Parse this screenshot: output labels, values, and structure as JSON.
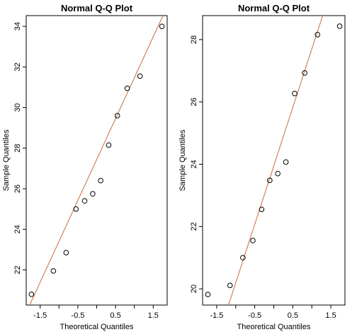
{
  "chart_data": [
    {
      "type": "scatter",
      "title": "Normal Q-Q Plot",
      "xlabel": "Theoretical Quantiles",
      "ylabel": "Sample Quantiles",
      "x": [
        -1.732,
        -1.15,
        -0.812,
        -0.549,
        -0.319,
        -0.105,
        0.105,
        0.319,
        0.549,
        0.812,
        1.15,
        1.732
      ],
      "values": [
        20.8,
        21.95,
        22.85,
        25.0,
        25.4,
        25.75,
        26.4,
        28.15,
        29.6,
        30.95,
        31.55,
        34.0
      ],
      "color": "#000000",
      "line": {
        "color": "#cd6a3a",
        "x": [
          -1.78,
          1.76
        ],
        "y": [
          20.27,
          34.53
        ]
      },
      "xlim": [
        -1.871,
        1.871
      ],
      "ylim": [
        20.27,
        34.53
      ],
      "xticks": [
        {
          "value": -1.5,
          "label": "-1.5"
        },
        {
          "value": -1.0,
          "label": ""
        },
        {
          "value": -0.5,
          "label": "-0.5"
        },
        {
          "value": 0,
          "label": ""
        },
        {
          "value": 0.5,
          "label": "0.5"
        },
        {
          "value": 1.0,
          "label": ""
        },
        {
          "value": 1.5,
          "label": "1.5"
        }
      ],
      "yticks": [
        22,
        24,
        26,
        28,
        30,
        32,
        34
      ]
    },
    {
      "type": "scatter",
      "title": "Normal Q-Q Plot",
      "xlabel": "Theoretical Quantiles",
      "ylabel": "Sample Quantiles",
      "x": [
        -1.732,
        -1.15,
        -0.812,
        -0.549,
        -0.319,
        -0.105,
        0.105,
        0.319,
        0.549,
        0.812,
        1.15,
        1.732
      ],
      "values": [
        19.82,
        20.11,
        21.0,
        21.55,
        22.55,
        23.48,
        23.7,
        24.07,
        26.27,
        26.93,
        28.16,
        28.43
      ],
      "color": "#000000",
      "line": {
        "color": "#cd6a3a",
        "x": [
          -1.19,
          1.285
        ],
        "y": [
          19.48,
          28.77
        ]
      },
      "xlim": [
        -1.871,
        1.871
      ],
      "ylim": [
        19.48,
        28.77
      ],
      "xticks": [
        {
          "value": -1.5,
          "label": "-1.5"
        },
        {
          "value": -1.0,
          "label": ""
        },
        {
          "value": -0.5,
          "label": "-0.5"
        },
        {
          "value": 0,
          "label": ""
        },
        {
          "value": 0.5,
          "label": "0.5"
        },
        {
          "value": 1.0,
          "label": ""
        },
        {
          "value": 1.5,
          "label": "1.5"
        }
      ],
      "yticks": [
        20,
        22,
        24,
        26,
        28
      ]
    }
  ]
}
